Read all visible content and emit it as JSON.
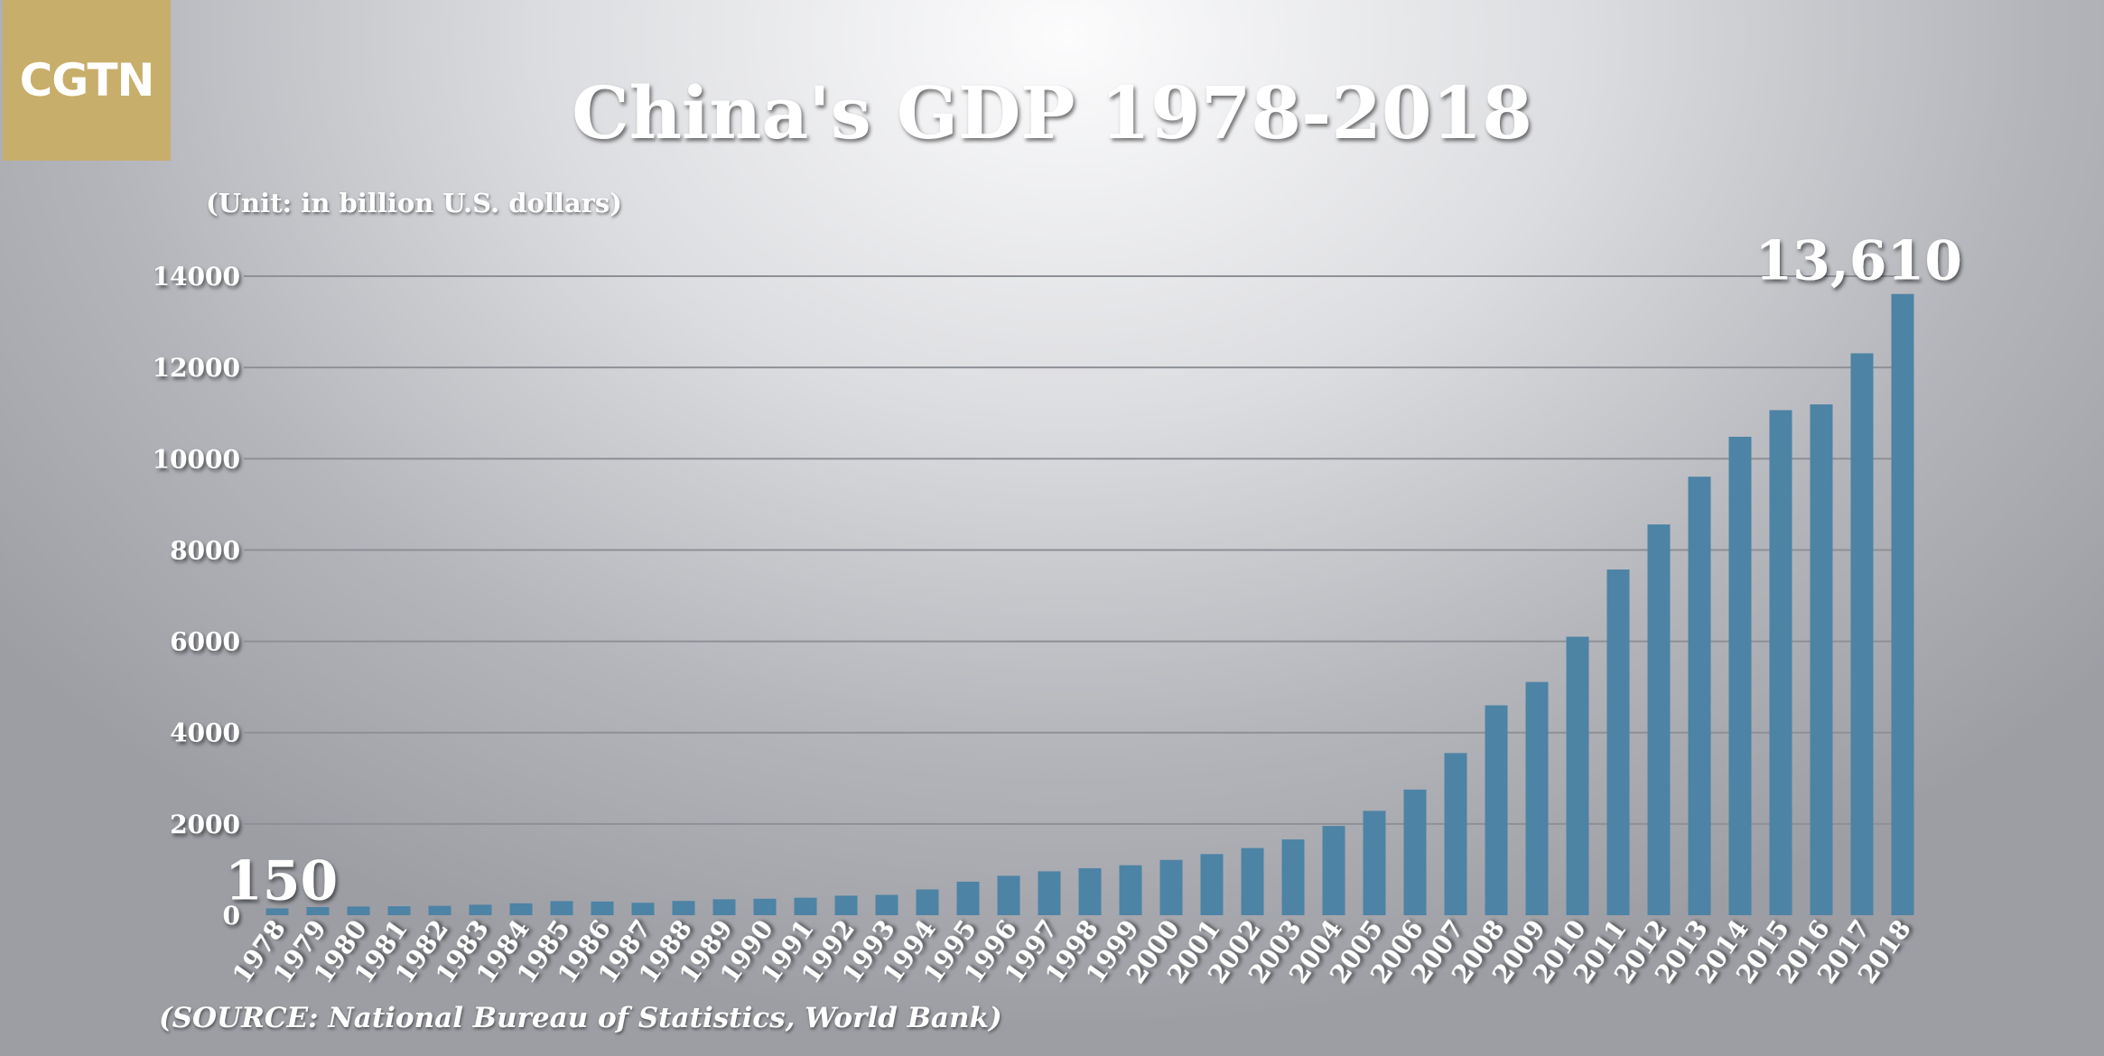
{
  "logo": {
    "text": "CGTN",
    "color": "#c8ae6b"
  },
  "chart_data": {
    "type": "bar",
    "title": "China's GDP 1978-2018",
    "subtitle": "(Unit: in billion U.S. dollars)",
    "source": "(SOURCE: National Bureau of Statistics, World Bank)",
    "categories": [
      "1978",
      "1979",
      "1980",
      "1981",
      "1982",
      "1983",
      "1984",
      "1985",
      "1986",
      "1987",
      "1988",
      "1989",
      "1990",
      "1991",
      "1992",
      "1993",
      "1994",
      "1995",
      "1996",
      "1997",
      "1998",
      "1999",
      "2000",
      "2001",
      "2002",
      "2003",
      "2004",
      "2005",
      "2006",
      "2007",
      "2008",
      "2009",
      "2010",
      "2011",
      "2012",
      "2013",
      "2014",
      "2015",
      "2016",
      "2017",
      "2018"
    ],
    "values": [
      150,
      178,
      191,
      196,
      205,
      230,
      260,
      309,
      300,
      272,
      312,
      348,
      361,
      383,
      427,
      445,
      564,
      734,
      863,
      961,
      1029,
      1094,
      1211,
      1339,
      1471,
      1660,
      1955,
      2286,
      2752,
      3552,
      4598,
      5110,
      6101,
      7573,
      8561,
      9607,
      10482,
      11065,
      11191,
      12310,
      13610
    ],
    "annotations": [
      {
        "category": "1978",
        "label": "150"
      },
      {
        "category": "2018",
        "label": "13,610"
      }
    ],
    "yticks": [
      0,
      2000,
      4000,
      6000,
      8000,
      10000,
      12000,
      14000
    ],
    "ytick_labels": [
      "0",
      "2000",
      "4000",
      "6000",
      "8000",
      "10000",
      "12000",
      "14000"
    ],
    "ylim": [
      0,
      14000
    ],
    "grid": true,
    "legend": "none",
    "bar_color": "#4d83a5"
  }
}
